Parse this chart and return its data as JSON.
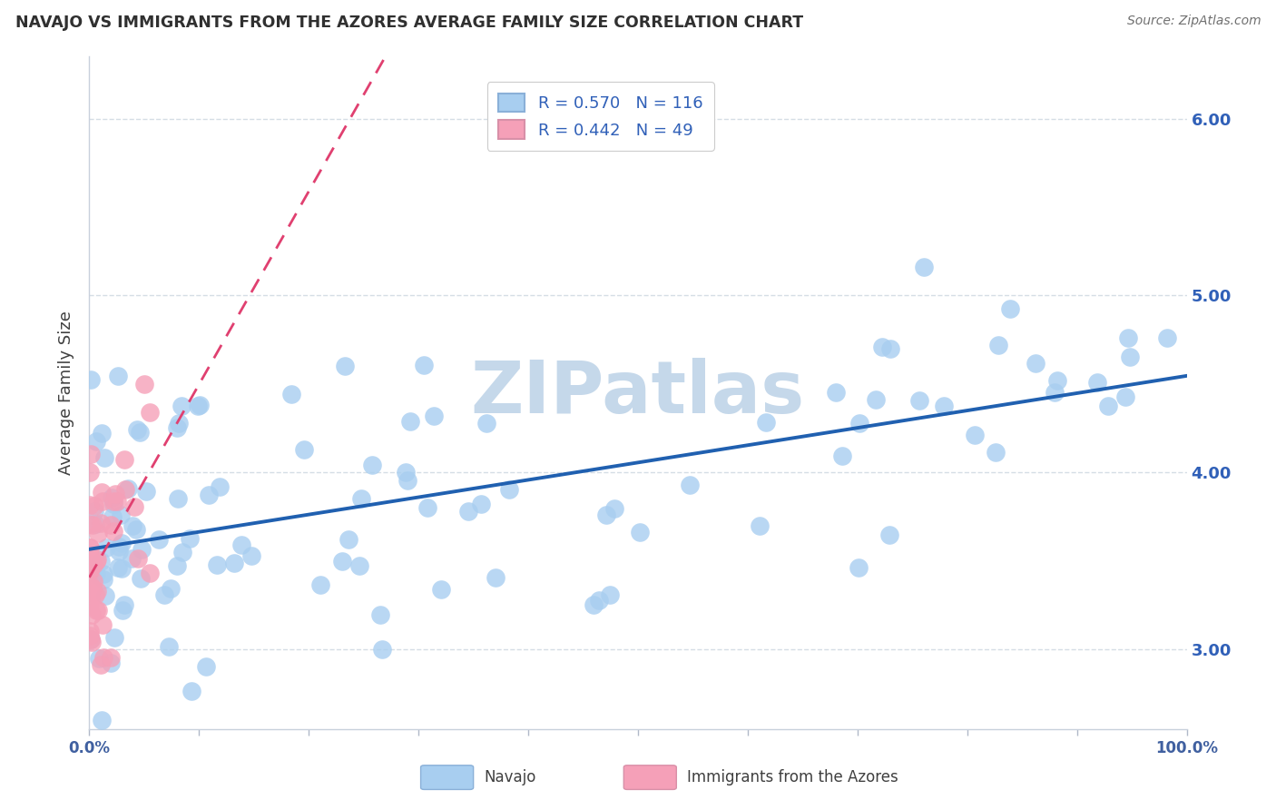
{
  "title": "NAVAJO VS IMMIGRANTS FROM THE AZORES AVERAGE FAMILY SIZE CORRELATION CHART",
  "source": "Source: ZipAtlas.com",
  "ylabel": "Average Family Size",
  "xlim": [
    0,
    1
  ],
  "ylim": [
    2.55,
    6.35
  ],
  "yticks": [
    3.0,
    4.0,
    5.0,
    6.0
  ],
  "ytick_labels": [
    "3.00",
    "4.00",
    "5.00",
    "6.00"
  ],
  "xtick_positions": [
    0.0,
    0.1,
    0.2,
    0.3,
    0.4,
    0.5,
    0.6,
    0.7,
    0.8,
    0.9,
    1.0
  ],
  "xtick_labels": [
    "0.0%",
    "",
    "",
    "",
    "",
    "",
    "",
    "",
    "",
    "",
    "100.0%"
  ],
  "navajo_color": "#a8cef0",
  "azores_color": "#f5a0b8",
  "navajo_line_color": "#2060b0",
  "azores_line_color": "#e04070",
  "watermark": "ZIPatlas",
  "watermark_color": "#c5d8ea",
  "background_color": "#ffffff",
  "grid_color": "#d5dde5",
  "title_color": "#303030",
  "source_color": "#707070",
  "ylabel_color": "#404040",
  "right_ytick_color": "#3060b8",
  "bottom_label_color": "#404040",
  "navajo_label": "Navajo",
  "azores_label": "Immigrants from the Azores",
  "legend_label1": "R = 0.570   N = 116",
  "legend_label2": "R = 0.442   N = 49"
}
